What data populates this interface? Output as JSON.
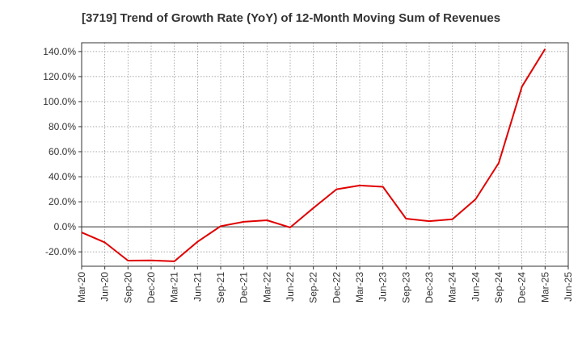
{
  "title": "[3719]  Trend of Growth Rate (YoY) of 12-Month Moving Sum of Revenues",
  "colors": {
    "line": "#e00000",
    "grid": "#888888",
    "axis": "#333333",
    "zero": "#333333"
  },
  "chart_data": {
    "type": "line",
    "title": "[3719]  Trend of Growth Rate (YoY) of 12-Month Moving Sum of Revenues",
    "xlabel": "",
    "ylabel": "",
    "x_tick_labels": [
      "Mar-20",
      "Jun-20",
      "Sep-20",
      "Dec-20",
      "Mar-21",
      "Jun-21",
      "Sep-21",
      "Dec-21",
      "Mar-22",
      "Jun-22",
      "Sep-22",
      "Dec-22",
      "Mar-23",
      "Jun-23",
      "Sep-23",
      "Dec-23",
      "Mar-24",
      "Jun-24",
      "Sep-24",
      "Dec-24",
      "Mar-25",
      "Jun-25"
    ],
    "y_ticks": [
      -20,
      0,
      20,
      40,
      60,
      80,
      100,
      120,
      140
    ],
    "y_tick_labels": [
      "-20.0%",
      "0.0%",
      "20.0%",
      "40.0%",
      "60.0%",
      "80.0%",
      "100.0%",
      "120.0%",
      "140.0%"
    ],
    "ylim": [
      -31.5,
      147
    ],
    "grid": true,
    "series": [
      {
        "x": [
          "Mar-20",
          "Jun-20",
          "Sep-20",
          "Dec-20",
          "Mar-21",
          "Jun-21",
          "Sep-21",
          "Dec-21",
          "Mar-22",
          "Jun-22",
          "Sep-22",
          "Dec-22",
          "Mar-23",
          "Jun-23",
          "Sep-23",
          "Dec-23",
          "Mar-24",
          "Jun-24",
          "Sep-24",
          "Dec-24",
          "Mar-25"
        ],
        "values": [
          -4.5,
          -12.5,
          -27,
          -26.8,
          -27.6,
          -12,
          0.5,
          4,
          5.2,
          -0.5,
          15,
          30,
          33,
          32,
          6.5,
          4.5,
          6,
          22,
          51,
          112,
          142
        ]
      }
    ]
  }
}
